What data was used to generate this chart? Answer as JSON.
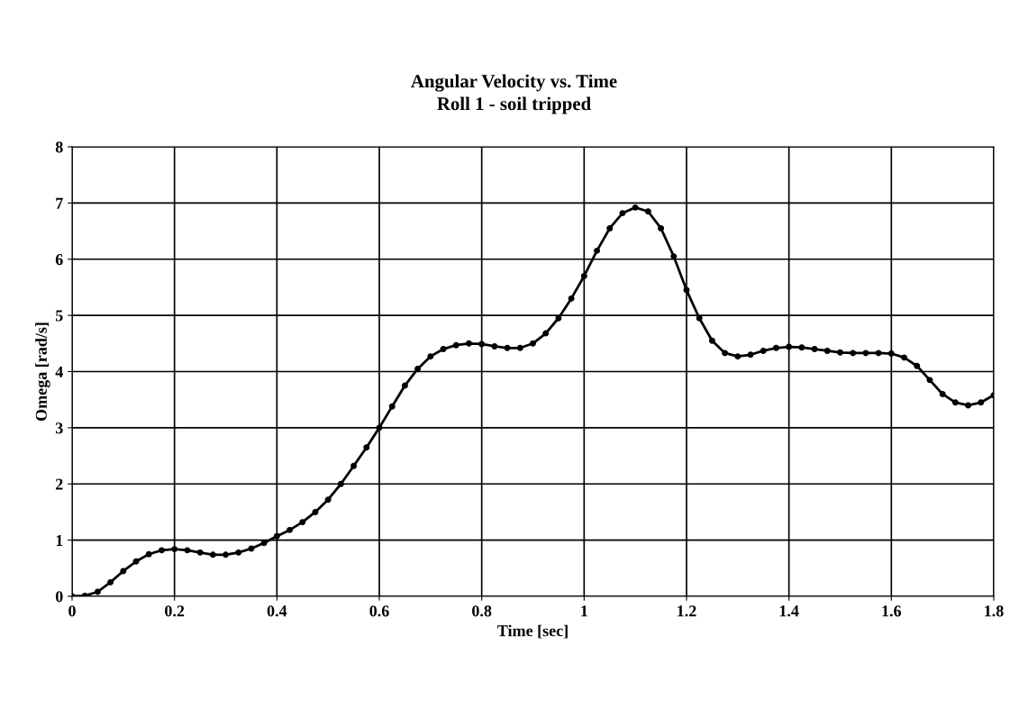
{
  "chart_data": {
    "type": "line",
    "title": "Angular Velocity vs. Time",
    "subtitle": "Roll 1 - soil tripped",
    "xlabel": "Time [sec]",
    "ylabel": "Omega [rad/s]",
    "x": [
      0,
      0.025,
      0.05,
      0.075,
      0.1,
      0.125,
      0.15,
      0.175,
      0.2,
      0.225,
      0.25,
      0.275,
      0.3,
      0.325,
      0.35,
      0.375,
      0.4,
      0.425,
      0.45,
      0.475,
      0.5,
      0.525,
      0.55,
      0.575,
      0.6,
      0.625,
      0.65,
      0.675,
      0.7,
      0.725,
      0.75,
      0.775,
      0.8,
      0.825,
      0.85,
      0.875,
      0.9,
      0.925,
      0.95,
      0.975,
      1.0,
      1.025,
      1.05,
      1.075,
      1.1,
      1.125,
      1.15,
      1.175,
      1.2,
      1.225,
      1.25,
      1.275,
      1.3,
      1.325,
      1.35,
      1.375,
      1.4,
      1.425,
      1.45,
      1.475,
      1.5,
      1.525,
      1.55,
      1.575,
      1.6,
      1.625,
      1.65,
      1.675,
      1.7,
      1.725,
      1.75,
      1.775,
      1.8
    ],
    "series": [
      {
        "color": "#000000",
        "values": [
          0,
          0.01,
          0.08,
          0.25,
          0.45,
          0.62,
          0.75,
          0.82,
          0.84,
          0.82,
          0.78,
          0.74,
          0.74,
          0.78,
          0.85,
          0.95,
          1.07,
          1.18,
          1.32,
          1.5,
          1.72,
          2.0,
          2.32,
          2.65,
          3.0,
          3.38,
          3.75,
          4.05,
          4.27,
          4.4,
          4.47,
          4.5,
          4.49,
          4.45,
          4.42,
          4.42,
          4.5,
          4.68,
          4.95,
          5.3,
          5.7,
          6.15,
          6.55,
          6.82,
          6.92,
          6.85,
          6.55,
          6.05,
          5.45,
          4.95,
          4.55,
          4.33,
          4.27,
          4.3,
          4.37,
          4.42,
          4.44,
          4.43,
          4.4,
          4.37,
          4.34,
          4.33,
          4.33,
          4.33,
          4.32,
          4.25,
          4.1,
          3.85,
          3.6,
          3.45,
          3.4,
          3.45,
          3.58
        ]
      }
    ],
    "xlim": [
      0,
      1.8
    ],
    "xticks": [
      0,
      0.2,
      0.4,
      0.6,
      0.8,
      1,
      1.2,
      1.4,
      1.6,
      1.8
    ],
    "ylim": [
      0,
      8
    ],
    "yticks": [
      0,
      1,
      2,
      3,
      4,
      5,
      6,
      7,
      8
    ],
    "grid": true,
    "marker": "circle",
    "line_style": "solid"
  }
}
